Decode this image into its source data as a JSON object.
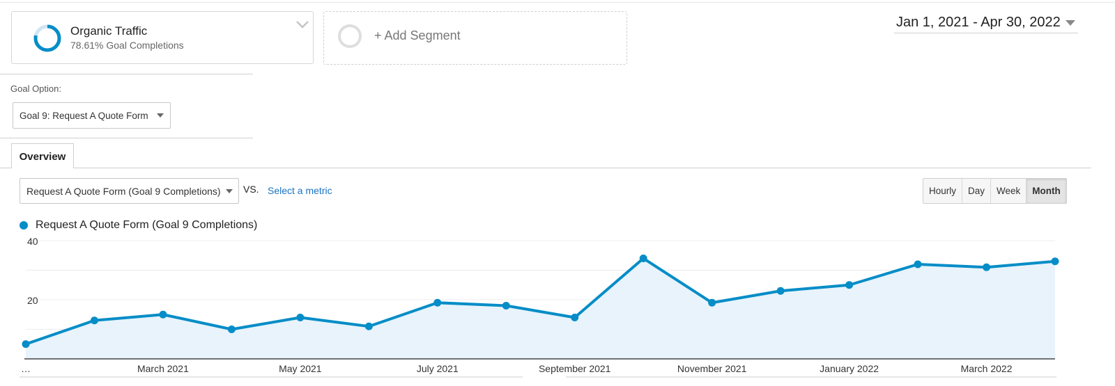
{
  "segment": {
    "name": "Organic Traffic",
    "subtitle": "78.61% Goal Completions",
    "percent": 0.7861,
    "accent": "#058dc7"
  },
  "add_segment": {
    "label": "+ Add Segment"
  },
  "date_range": {
    "label": "Jan 1, 2021 - Apr 30, 2022"
  },
  "goal_option": {
    "label": "Goal Option:",
    "selected": "Goal 9: Request A Quote Form"
  },
  "tabs": [
    {
      "label": "Overview",
      "active": true
    }
  ],
  "metric": {
    "selected": "Request A Quote Form (Goal 9 Completions)",
    "vs_label": "VS.",
    "compare_link": "Select a metric"
  },
  "granularity": {
    "options": [
      "Hourly",
      "Day",
      "Week",
      "Month"
    ],
    "active": "Month"
  },
  "legend": {
    "series_name": "Request A Quote Form (Goal 9 Completions)"
  },
  "chart_data": {
    "type": "area",
    "x": [
      "Jan 2021",
      "Feb 2021",
      "Mar 2021",
      "Apr 2021",
      "May 2021",
      "Jun 2021",
      "Jul 2021",
      "Aug 2021",
      "Sep 2021",
      "Oct 2021",
      "Nov 2021",
      "Dec 2021",
      "Jan 2022",
      "Feb 2022",
      "Mar 2022",
      "Apr 2022"
    ],
    "series": [
      {
        "name": "Request A Quote Form (Goal 9 Completions)",
        "values": [
          5,
          13,
          15,
          10,
          14,
          11,
          19,
          18,
          14,
          34,
          19,
          23,
          25,
          32,
          31,
          33
        ],
        "color": "#058dc7",
        "fill": "#e8f3fb"
      }
    ],
    "yticks": [
      20,
      40
    ],
    "ylim": [
      0,
      40
    ],
    "xtick_labels": [
      {
        "label": "…",
        "at": "Jan 2021"
      },
      {
        "label": "March 2021",
        "at": "Mar 2021"
      },
      {
        "label": "May 2021",
        "at": "May 2021"
      },
      {
        "label": "July 2021",
        "at": "Jul 2021"
      },
      {
        "label": "September 2021",
        "at": "Sep 2021"
      },
      {
        "label": "November 2021",
        "at": "Nov 2021"
      },
      {
        "label": "January 2022",
        "at": "Jan 2022"
      },
      {
        "label": "March 2022",
        "at": "Mar 2022"
      }
    ],
    "grid": true,
    "legend": "top-left"
  }
}
